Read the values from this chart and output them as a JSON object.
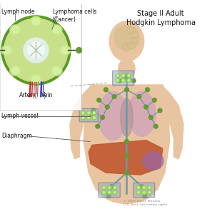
{
  "title": "Stage II Adult\nHodgkin Lymphoma",
  "title_fontsize": 7.0,
  "labels": {
    "lymph_node": "Lymph node",
    "lymphoma_cells": "Lymphoma cells\n(Cancer)",
    "artery": "Artery",
    "vein": "Vein",
    "lymph_vessel": "Lymph vessel",
    "diaphragm": "Diaphragm"
  },
  "bg_color": "#ffffff",
  "body_skin": "#e8c4a0",
  "lung_color": "#d4a8b8",
  "liver_color": "#c05830",
  "spleen_color": "#9966aa",
  "lymph_green_light": "#a8cc66",
  "lymph_green_dark": "#669933",
  "lymph_node_bg": "#c8e08a",
  "lymph_node_border": "#5a9922",
  "lymph_vessel_color": "#6699aa",
  "artery_color": "#cc2222",
  "vein_color": "#2244cc",
  "box_bg": "#8899bb",
  "box_cancer_green": "#88cc55",
  "inset_bg": "#f0f8e8",
  "copyright": "© 2009 Terese Winslow\nU.S. Govt. has certain rights"
}
